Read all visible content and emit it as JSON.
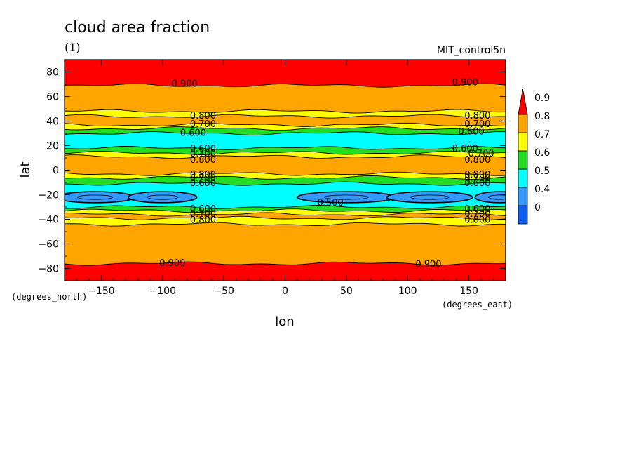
{
  "chart_data": {
    "type": "heatmap",
    "title": "cloud area fraction",
    "subtitle": "(1)",
    "run_label": "MIT_control5n",
    "xlabel": "lon",
    "ylabel": "lat",
    "x_units": "(degrees_east)",
    "y_units": "(degrees_north)",
    "xlim": [
      -180,
      180
    ],
    "ylim": [
      -90,
      90
    ],
    "x_ticks": [
      -150,
      -100,
      -50,
      0,
      50,
      100,
      150
    ],
    "x_tick_labels": [
      "−150",
      "−100",
      "−50",
      "0",
      "50",
      "100",
      "150"
    ],
    "y_ticks": [
      80,
      60,
      40,
      20,
      0,
      -20,
      -40,
      -60,
      -80
    ],
    "y_tick_labels": [
      "80",
      "60",
      "40",
      "20",
      "0",
      "−20",
      "−40",
      "−60",
      "−80"
    ],
    "colorbar": {
      "levels": [
        0,
        0.4,
        0.5,
        0.6,
        0.7,
        0.8,
        0.9
      ],
      "labels": [
        "0",
        "0.4",
        "0.5",
        "0.6",
        "0.7",
        "0.8",
        "0.9"
      ],
      "colors": [
        "#0a5df0",
        "#3399ff",
        "#00ffff",
        "#22dd22",
        "#ffff00",
        "#ffa500",
        "#ff0000"
      ],
      "extend": "max"
    },
    "zonal_bands": [
      {
        "lat_from": 90,
        "lat_to": 69,
        "value_min": 0.9
      },
      {
        "lat_from": 69,
        "lat_to": 48,
        "value_min": 0.8
      },
      {
        "lat_from": 48,
        "lat_to": 44,
        "value_min": 0.7
      },
      {
        "lat_from": 44,
        "lat_to": 37,
        "value_min": 0.8
      },
      {
        "lat_from": 37,
        "lat_to": 34,
        "value_min": 0.7
      },
      {
        "lat_from": 34,
        "lat_to": 30,
        "value_min": 0.6
      },
      {
        "lat_from": 30,
        "lat_to": 18,
        "value_min": 0.5
      },
      {
        "lat_from": 18,
        "lat_to": 14,
        "value_min": 0.6
      },
      {
        "lat_from": 14,
        "lat_to": 11,
        "value_min": 0.7
      },
      {
        "lat_from": 11,
        "lat_to": -3,
        "value_min": 0.8
      },
      {
        "lat_from": -3,
        "lat_to": -6,
        "value_min": 0.7
      },
      {
        "lat_from": -6,
        "lat_to": -11,
        "value_min": 0.6
      },
      {
        "lat_from": -11,
        "lat_to": -30,
        "value_min": 0.5
      },
      {
        "lat_from": -30,
        "lat_to": -33,
        "value_min": 0.6
      },
      {
        "lat_from": -33,
        "lat_to": -36,
        "value_min": 0.7
      },
      {
        "lat_from": -36,
        "lat_to": -39,
        "value_min": 0.8
      },
      {
        "lat_from": -39,
        "lat_to": -44,
        "value_min": 0.7
      },
      {
        "lat_from": -44,
        "lat_to": -76,
        "value_min": 0.8
      },
      {
        "lat_from": -76,
        "lat_to": -90,
        "value_min": 0.9
      }
    ],
    "cells_below_0_5": [
      {
        "lon_center": -155,
        "lat_center": -22,
        "lon_halfwidth": 32,
        "lat_halfheight": 4.5
      },
      {
        "lon_center": -100,
        "lat_center": -22,
        "lon_halfwidth": 28,
        "lat_halfheight": 4.5
      },
      {
        "lon_center": 50,
        "lat_center": -22,
        "lon_halfwidth": 40,
        "lat_halfheight": 4.5
      },
      {
        "lon_center": 118,
        "lat_center": -22,
        "lon_halfwidth": 35,
        "lat_halfheight": 4.5
      },
      {
        "lon_center": 175,
        "lat_center": -22,
        "lon_halfwidth": 20,
        "lat_halfheight": 4.5
      }
    ],
    "contour_labels": [
      {
        "text": "0.900",
        "lon": -82,
        "lat": 71
      },
      {
        "text": "0.900",
        "lon": 147,
        "lat": 72
      },
      {
        "text": "0.800",
        "lon": -67,
        "lat": 45
      },
      {
        "text": "0.800",
        "lon": 157,
        "lat": 45
      },
      {
        "text": "0.700",
        "lon": -67,
        "lat": 38
      },
      {
        "text": "0.700",
        "lon": 157,
        "lat": 38
      },
      {
        "text": "0.600",
        "lon": -75,
        "lat": 31
      },
      {
        "text": "0.600",
        "lon": 152,
        "lat": 32
      },
      {
        "text": "0.600",
        "lon": -67,
        "lat": 18
      },
      {
        "text": "0.600",
        "lon": 147,
        "lat": 18
      },
      {
        "text": "0.700",
        "lon": -67,
        "lat": 14
      },
      {
        "text": "0.700",
        "lon": 160,
        "lat": 14
      },
      {
        "text": "0.800",
        "lon": -67,
        "lat": 9
      },
      {
        "text": "0.800",
        "lon": 157,
        "lat": 9
      },
      {
        "text": "0.800",
        "lon": -67,
        "lat": -3
      },
      {
        "text": "0.800",
        "lon": 157,
        "lat": -3
      },
      {
        "text": "0.700",
        "lon": -67,
        "lat": -6
      },
      {
        "text": "0.700",
        "lon": 157,
        "lat": -6
      },
      {
        "text": "0.600",
        "lon": -67,
        "lat": -10
      },
      {
        "text": "0.600",
        "lon": 157,
        "lat": -10
      },
      {
        "text": "0.500",
        "lon": 37,
        "lat": -26
      },
      {
        "text": "0.600",
        "lon": -67,
        "lat": -31
      },
      {
        "text": "0.600",
        "lon": 157,
        "lat": -31
      },
      {
        "text": "0.700",
        "lon": -67,
        "lat": -35
      },
      {
        "text": "0.700",
        "lon": 157,
        "lat": -35
      },
      {
        "text": "0.800",
        "lon": -67,
        "lat": -40
      },
      {
        "text": "0.800",
        "lon": 157,
        "lat": -40
      },
      {
        "text": "0.900",
        "lon": -92,
        "lat": -75
      },
      {
        "text": "0.900",
        "lon": 117,
        "lat": -76
      }
    ],
    "grid": false,
    "legend_placement": "right"
  }
}
